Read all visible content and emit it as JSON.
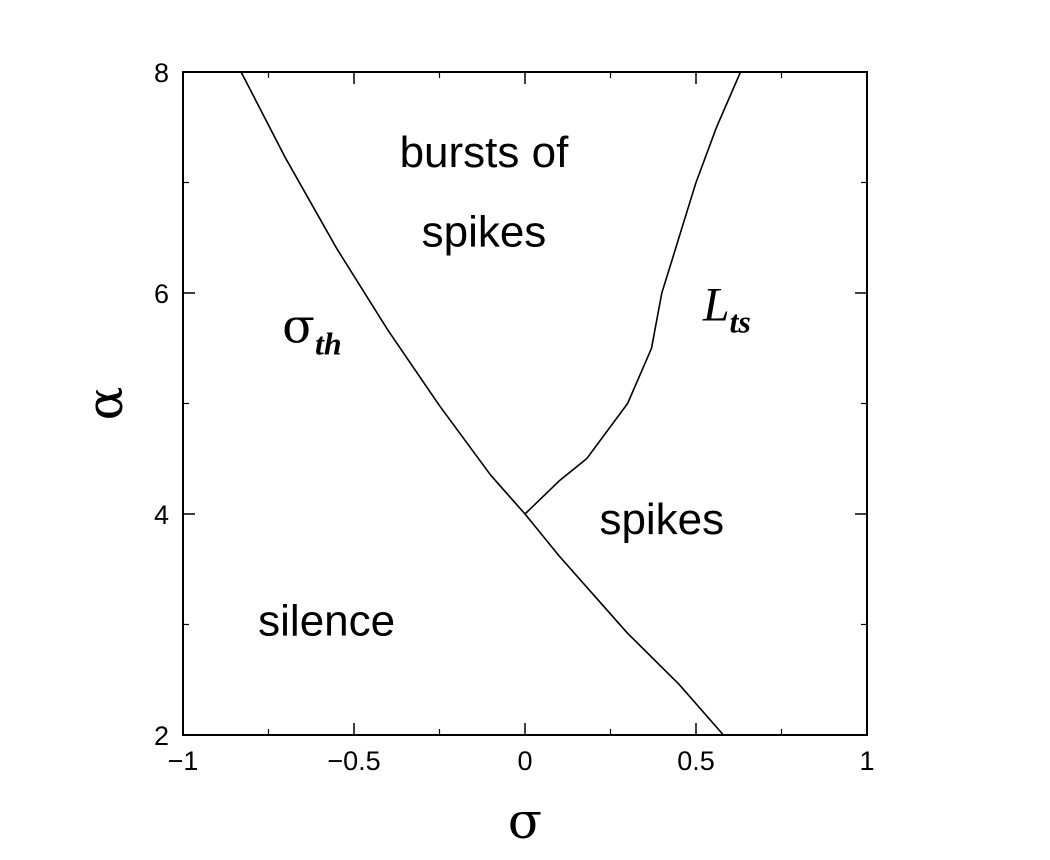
{
  "chart_data": {
    "type": "line",
    "xlabel": "σ",
    "ylabel": "α",
    "xlim": [
      -1,
      1
    ],
    "ylim": [
      2,
      8
    ],
    "x_ticks": [
      -1,
      -0.5,
      0,
      0.5,
      1
    ],
    "x_tick_labels": [
      "−1",
      "−0.5",
      "0",
      "0.5",
      "1"
    ],
    "x_minor_ticks": [
      -0.75,
      -0.25,
      0.25,
      0.75
    ],
    "y_ticks": [
      2,
      4,
      6,
      8
    ],
    "y_tick_labels": [
      "2",
      "4",
      "6",
      "8"
    ],
    "y_minor_ticks": [
      3,
      5,
      7
    ],
    "grid": false,
    "series": [
      {
        "name": "σth",
        "label_main": "σ",
        "label_sub": "th",
        "x": [
          -0.83,
          -0.7,
          -0.55,
          -0.4,
          -0.25,
          -0.1,
          0.0,
          0.1,
          0.2,
          0.3,
          0.45,
          0.58
        ],
        "y": [
          8.0,
          7.22,
          6.4,
          5.66,
          4.98,
          4.35,
          4.0,
          3.62,
          3.27,
          2.92,
          2.46,
          2.0
        ]
      },
      {
        "name": "Lts",
        "label_main": "L",
        "label_sub": "ts",
        "x": [
          0.0,
          0.1,
          0.18,
          0.3,
          0.37,
          0.4,
          0.43,
          0.46,
          0.5,
          0.56,
          0.63
        ],
        "y": [
          4.0,
          4.3,
          4.5,
          5.0,
          5.5,
          6.0,
          6.3,
          6.6,
          7.0,
          7.5,
          8.0
        ]
      }
    ],
    "annotations": [
      {
        "key": "bursts-line1",
        "text": "bursts of",
        "x": -0.12,
        "y": 7.14
      },
      {
        "key": "bursts-line2",
        "text": "spikes",
        "x": -0.12,
        "y": 6.42
      },
      {
        "key": "spikes",
        "text": "spikes",
        "x": 0.4,
        "y": 3.82
      },
      {
        "key": "silence",
        "text": "silence",
        "x": -0.58,
        "y": 2.9
      }
    ],
    "curve_label_positions": [
      {
        "series": 0,
        "x": -0.71,
        "y": 5.55
      },
      {
        "series": 1,
        "x": 0.52,
        "y": 5.75
      }
    ]
  }
}
